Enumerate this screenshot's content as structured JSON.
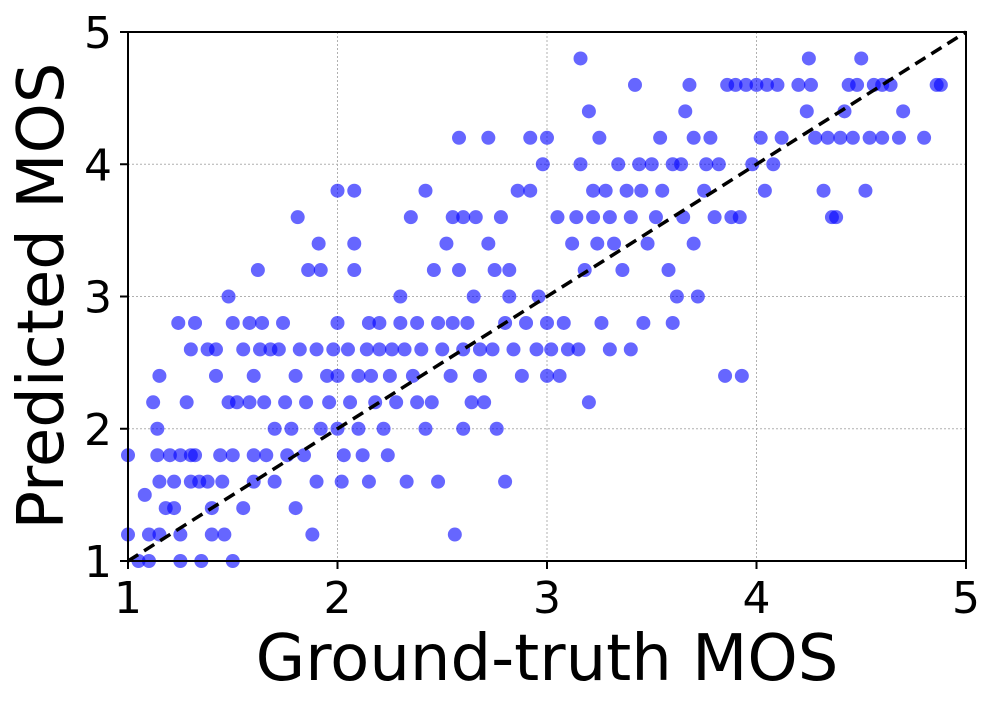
{
  "chart_data": {
    "type": "scatter",
    "xlabel": "Ground-truth MOS",
    "ylabel": "Predicted MOS",
    "xlim": [
      1,
      5
    ],
    "ylim": [
      1,
      5
    ],
    "xticks": [
      "1",
      "2",
      "3",
      "4",
      "5"
    ],
    "yticks": [
      "1",
      "2",
      "3",
      "4",
      "5"
    ],
    "grid": true,
    "reference_line": {
      "from": [
        1,
        1
      ],
      "to": [
        5,
        5
      ],
      "style": "dashed",
      "color": "#000000"
    },
    "point_color": "#0000ff",
    "point_opacity": 0.6,
    "points": [
      [
        1.0,
        1.8
      ],
      [
        1.0,
        1.2
      ],
      [
        1.05,
        1.0
      ],
      [
        1.1,
        1.2
      ],
      [
        1.1,
        1.0
      ],
      [
        1.08,
        1.5
      ],
      [
        1.12,
        2.2
      ],
      [
        1.14,
        2.0
      ],
      [
        1.15,
        2.4
      ],
      [
        1.14,
        1.8
      ],
      [
        1.15,
        1.6
      ],
      [
        1.15,
        1.2
      ],
      [
        1.18,
        1.4
      ],
      [
        1.2,
        1.8
      ],
      [
        1.22,
        1.6
      ],
      [
        1.22,
        1.4
      ],
      [
        1.24,
        2.8
      ],
      [
        1.25,
        1.8
      ],
      [
        1.25,
        1.2
      ],
      [
        1.25,
        1.0
      ],
      [
        1.28,
        2.2
      ],
      [
        1.3,
        2.6
      ],
      [
        1.3,
        1.8
      ],
      [
        1.3,
        1.6
      ],
      [
        1.32,
        2.8
      ],
      [
        1.32,
        1.8
      ],
      [
        1.34,
        1.6
      ],
      [
        1.35,
        1.0
      ],
      [
        1.38,
        1.6
      ],
      [
        1.38,
        2.6
      ],
      [
        1.4,
        1.4
      ],
      [
        1.4,
        1.2
      ],
      [
        1.42,
        2.4
      ],
      [
        1.42,
        2.6
      ],
      [
        1.44,
        1.8
      ],
      [
        1.45,
        1.6
      ],
      [
        1.46,
        1.2
      ],
      [
        1.48,
        3.0
      ],
      [
        1.48,
        2.2
      ],
      [
        1.5,
        2.8
      ],
      [
        1.5,
        1.8
      ],
      [
        1.5,
        1.0
      ],
      [
        1.52,
        2.2
      ],
      [
        1.55,
        2.6
      ],
      [
        1.55,
        1.4
      ],
      [
        1.58,
        2.8
      ],
      [
        1.58,
        2.2
      ],
      [
        1.6,
        2.4
      ],
      [
        1.6,
        1.6
      ],
      [
        1.6,
        1.8
      ],
      [
        1.62,
        3.2
      ],
      [
        1.63,
        2.6
      ],
      [
        1.64,
        2.8
      ],
      [
        1.65,
        2.2
      ],
      [
        1.66,
        1.8
      ],
      [
        1.68,
        2.6
      ],
      [
        1.7,
        1.6
      ],
      [
        1.7,
        2.0
      ],
      [
        1.72,
        2.6
      ],
      [
        1.74,
        2.8
      ],
      [
        1.75,
        2.2
      ],
      [
        1.76,
        1.8
      ],
      [
        1.78,
        2.0
      ],
      [
        1.8,
        1.4
      ],
      [
        1.8,
        2.4
      ],
      [
        1.81,
        3.6
      ],
      [
        1.82,
        2.6
      ],
      [
        1.84,
        1.8
      ],
      [
        1.85,
        2.2
      ],
      [
        1.86,
        3.2
      ],
      [
        1.88,
        1.2
      ],
      [
        1.9,
        2.6
      ],
      [
        1.9,
        1.6
      ],
      [
        1.91,
        3.4
      ],
      [
        1.92,
        2.0
      ],
      [
        1.92,
        3.2
      ],
      [
        1.95,
        2.4
      ],
      [
        1.96,
        2.2
      ],
      [
        1.98,
        2.6
      ],
      [
        2.0,
        2.8
      ],
      [
        2.0,
        3.8
      ],
      [
        2.0,
        2.4
      ],
      [
        2.0,
        2.0
      ],
      [
        2.02,
        1.6
      ],
      [
        2.03,
        1.8
      ],
      [
        2.05,
        2.6
      ],
      [
        2.06,
        2.2
      ],
      [
        2.08,
        3.2
      ],
      [
        2.08,
        3.4
      ],
      [
        2.08,
        3.8
      ],
      [
        2.1,
        2.0
      ],
      [
        2.1,
        2.4
      ],
      [
        2.12,
        1.8
      ],
      [
        2.14,
        2.6
      ],
      [
        2.15,
        2.8
      ],
      [
        2.15,
        1.6
      ],
      [
        2.16,
        2.4
      ],
      [
        2.18,
        2.2
      ],
      [
        2.2,
        2.6
      ],
      [
        2.2,
        2.8
      ],
      [
        2.22,
        2.0
      ],
      [
        2.24,
        1.8
      ],
      [
        2.25,
        2.4
      ],
      [
        2.26,
        2.6
      ],
      [
        2.28,
        2.2
      ],
      [
        2.3,
        2.8
      ],
      [
        2.3,
        3.0
      ],
      [
        2.32,
        2.6
      ],
      [
        2.33,
        1.6
      ],
      [
        2.35,
        3.6
      ],
      [
        2.36,
        2.4
      ],
      [
        2.38,
        2.2
      ],
      [
        2.38,
        2.8
      ],
      [
        2.4,
        2.6
      ],
      [
        2.42,
        3.8
      ],
      [
        2.42,
        2.0
      ],
      [
        2.45,
        2.2
      ],
      [
        2.46,
        3.2
      ],
      [
        2.48,
        2.8
      ],
      [
        2.48,
        1.6
      ],
      [
        2.5,
        2.6
      ],
      [
        2.52,
        3.4
      ],
      [
        2.54,
        2.4
      ],
      [
        2.55,
        3.6
      ],
      [
        2.55,
        2.8
      ],
      [
        2.56,
        1.2
      ],
      [
        2.58,
        4.2
      ],
      [
        2.58,
        3.2
      ],
      [
        2.6,
        2.6
      ],
      [
        2.6,
        3.6
      ],
      [
        2.6,
        2.0
      ],
      [
        2.62,
        2.8
      ],
      [
        2.64,
        2.2
      ],
      [
        2.65,
        3.0
      ],
      [
        2.66,
        3.6
      ],
      [
        2.68,
        2.6
      ],
      [
        2.68,
        2.4
      ],
      [
        2.7,
        2.2
      ],
      [
        2.72,
        4.2
      ],
      [
        2.72,
        3.4
      ],
      [
        2.74,
        2.6
      ],
      [
        2.75,
        3.2
      ],
      [
        2.76,
        2.0
      ],
      [
        2.78,
        3.6
      ],
      [
        2.8,
        1.6
      ],
      [
        2.8,
        2.8
      ],
      [
        2.82,
        3.0
      ],
      [
        2.82,
        3.2
      ],
      [
        2.84,
        2.6
      ],
      [
        2.86,
        3.8
      ],
      [
        2.88,
        2.4
      ],
      [
        2.9,
        2.8
      ],
      [
        2.92,
        4.2
      ],
      [
        2.92,
        3.8
      ],
      [
        2.95,
        2.6
      ],
      [
        2.96,
        3.0
      ],
      [
        2.98,
        4.0
      ],
      [
        3.0,
        2.4
      ],
      [
        3.0,
        4.2
      ],
      [
        3.0,
        2.8
      ],
      [
        3.02,
        2.6
      ],
      [
        3.05,
        3.6
      ],
      [
        3.06,
        2.4
      ],
      [
        3.08,
        2.8
      ],
      [
        3.1,
        2.6
      ],
      [
        3.12,
        3.4
      ],
      [
        3.14,
        3.6
      ],
      [
        3.15,
        2.6
      ],
      [
        3.16,
        4.8
      ],
      [
        3.16,
        4.0
      ],
      [
        3.18,
        3.2
      ],
      [
        3.2,
        2.2
      ],
      [
        3.2,
        4.4
      ],
      [
        3.22,
        3.8
      ],
      [
        3.22,
        3.6
      ],
      [
        3.24,
        3.4
      ],
      [
        3.25,
        4.2
      ],
      [
        3.26,
        2.8
      ],
      [
        3.28,
        3.8
      ],
      [
        3.3,
        2.6
      ],
      [
        3.3,
        3.6
      ],
      [
        3.32,
        3.4
      ],
      [
        3.34,
        4.0
      ],
      [
        3.36,
        3.2
      ],
      [
        3.38,
        3.8
      ],
      [
        3.4,
        2.6
      ],
      [
        3.4,
        3.6
      ],
      [
        3.42,
        4.6
      ],
      [
        3.44,
        4.0
      ],
      [
        3.45,
        3.8
      ],
      [
        3.46,
        2.8
      ],
      [
        3.48,
        3.4
      ],
      [
        3.5,
        4.0
      ],
      [
        3.52,
        3.6
      ],
      [
        3.54,
        4.2
      ],
      [
        3.55,
        3.8
      ],
      [
        3.58,
        3.2
      ],
      [
        3.6,
        4.0
      ],
      [
        3.6,
        2.8
      ],
      [
        3.62,
        3.0
      ],
      [
        3.64,
        4.0
      ],
      [
        3.65,
        3.6
      ],
      [
        3.66,
        4.4
      ],
      [
        3.68,
        4.6
      ],
      [
        3.7,
        3.4
      ],
      [
        3.7,
        4.2
      ],
      [
        3.72,
        3.0
      ],
      [
        3.75,
        3.8
      ],
      [
        3.76,
        4.0
      ],
      [
        3.78,
        4.2
      ],
      [
        3.8,
        3.6
      ],
      [
        3.82,
        4.0
      ],
      [
        3.85,
        2.4
      ],
      [
        3.86,
        4.6
      ],
      [
        3.88,
        3.6
      ],
      [
        3.9,
        4.6
      ],
      [
        3.92,
        3.6
      ],
      [
        3.93,
        2.4
      ],
      [
        3.95,
        4.6
      ],
      [
        3.98,
        4.0
      ],
      [
        4.0,
        4.6
      ],
      [
        4.02,
        4.2
      ],
      [
        4.04,
        3.8
      ],
      [
        4.05,
        4.6
      ],
      [
        4.08,
        4.0
      ],
      [
        4.1,
        4.6
      ],
      [
        4.12,
        4.2
      ],
      [
        4.2,
        4.6
      ],
      [
        4.24,
        4.4
      ],
      [
        4.25,
        4.8
      ],
      [
        4.26,
        4.6
      ],
      [
        4.28,
        4.2
      ],
      [
        4.32,
        3.8
      ],
      [
        4.34,
        4.2
      ],
      [
        4.36,
        3.6
      ],
      [
        4.38,
        3.6
      ],
      [
        4.4,
        4.2
      ],
      [
        4.42,
        4.4
      ],
      [
        4.44,
        4.6
      ],
      [
        4.46,
        4.2
      ],
      [
        4.48,
        4.6
      ],
      [
        4.5,
        4.8
      ],
      [
        4.52,
        3.8
      ],
      [
        4.54,
        4.2
      ],
      [
        4.56,
        4.6
      ],
      [
        4.6,
        4.6
      ],
      [
        4.6,
        4.2
      ],
      [
        4.64,
        4.6
      ],
      [
        4.68,
        4.2
      ],
      [
        4.7,
        4.4
      ],
      [
        4.8,
        4.2
      ],
      [
        4.86,
        4.6
      ],
      [
        4.88,
        4.6
      ]
    ]
  }
}
